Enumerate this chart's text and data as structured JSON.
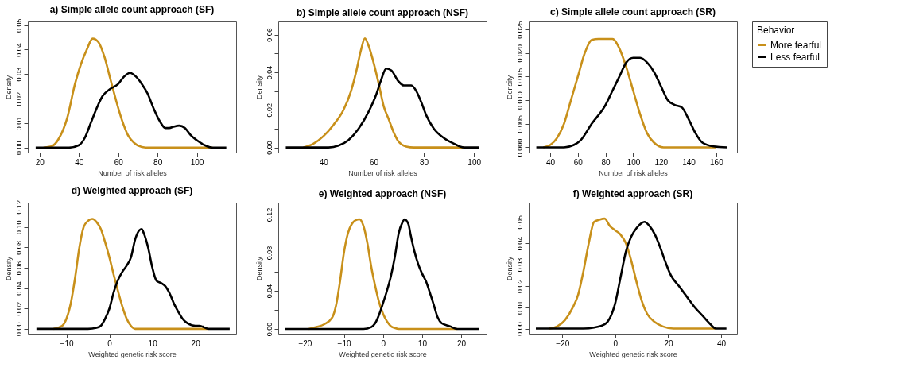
{
  "chart_data": [
    {
      "type": "line",
      "title": "a) Simple allele count approach (SF)",
      "xlabel": "Number of risk alleles",
      "ylabel": "Density",
      "xlim": [
        14,
        120
      ],
      "ylim": [
        -0.002,
        0.0515
      ],
      "xticks": [
        20,
        40,
        60,
        80,
        100
      ],
      "yticks": [
        {
          "value": 0,
          "label": "0.00"
        },
        {
          "value": 0.01,
          "label": "0.01"
        },
        {
          "value": 0.02,
          "label": "0.02"
        },
        {
          "value": 0.03,
          "label": "0.03"
        },
        {
          "value": 0.04,
          "label": "0.04"
        },
        {
          "value": 0.05,
          "label": "0.05"
        }
      ],
      "grid": false,
      "legend": "right",
      "legend_title": "Behavior",
      "series": [
        {
          "name": "More fearful",
          "color": "#c8901a",
          "x": [
            22,
            26,
            30,
            34,
            38,
            41,
            44,
            47,
            50,
            53,
            56,
            59,
            62,
            65,
            68,
            72,
            76,
            90,
            108
          ],
          "values": [
            0,
            0.0005,
            0.004,
            0.012,
            0.026,
            0.034,
            0.04,
            0.0445,
            0.043,
            0.037,
            0.028,
            0.019,
            0.011,
            0.005,
            0.002,
            0.0003,
            0,
            0,
            0
          ]
        },
        {
          "name": "Less fearful",
          "color": "#000000",
          "x": [
            18,
            35,
            40,
            43,
            46,
            49,
            52,
            56,
            60,
            63,
            66,
            69,
            72,
            75,
            78,
            81,
            84,
            86,
            88,
            91,
            94,
            97,
            100,
            104,
            108,
            115
          ],
          "values": [
            0,
            0,
            0.001,
            0.004,
            0.01,
            0.016,
            0.021,
            0.024,
            0.026,
            0.029,
            0.0305,
            0.029,
            0.026,
            0.022,
            0.016,
            0.011,
            0.008,
            0.008,
            0.0085,
            0.009,
            0.008,
            0.005,
            0.003,
            0.001,
            0,
            0
          ]
        }
      ]
    },
    {
      "type": "line",
      "title": "b) Simple allele count approach (NSF)",
      "xlabel": "Number of risk alleles",
      "ylabel": "Density",
      "xlim": [
        22,
        105
      ],
      "ylim": [
        -0.0027,
        0.067
      ],
      "xticks": [
        40,
        60,
        80,
        100
      ],
      "yticks": [
        {
          "value": 0,
          "label": "0.00"
        },
        {
          "value": 0.01,
          "label": null
        },
        {
          "value": 0.02,
          "label": "0.02"
        },
        {
          "value": 0.03,
          "label": null
        },
        {
          "value": 0.04,
          "label": "0.04"
        },
        {
          "value": 0.05,
          "label": null
        },
        {
          "value": 0.06,
          "label": "0.06"
        }
      ],
      "grid": false,
      "legend": "right",
      "series": [
        {
          "name": "More fearful",
          "color": "#c8901a",
          "x": [
            32,
            36,
            40,
            44,
            48,
            51,
            53,
            55,
            56.5,
            58,
            60,
            62,
            64,
            66,
            68,
            70,
            73,
            76,
            96
          ],
          "values": [
            0,
            0.002,
            0.006,
            0.012,
            0.02,
            0.03,
            0.04,
            0.052,
            0.058,
            0.054,
            0.045,
            0.034,
            0.022,
            0.015,
            0.008,
            0.003,
            0.0005,
            0,
            0
          ]
        },
        {
          "name": "Less fearful",
          "color": "#000000",
          "x": [
            25,
            42,
            46,
            50,
            54,
            58,
            61,
            63,
            65,
            67,
            70,
            72,
            75,
            77,
            79,
            81,
            84,
            88,
            92,
            96,
            102
          ],
          "values": [
            0,
            0,
            0.001,
            0.004,
            0.01,
            0.019,
            0.028,
            0.036,
            0.042,
            0.041,
            0.035,
            0.033,
            0.033,
            0.03,
            0.024,
            0.017,
            0.01,
            0.005,
            0.002,
            0,
            0
          ]
        }
      ]
    },
    {
      "type": "line",
      "title": "c) Simple allele count approach (SR)",
      "xlabel": "Number of risk alleles",
      "ylabel": "Density",
      "xlim": [
        24.5,
        175
      ],
      "ylim": [
        -0.0011,
        0.0267
      ],
      "xticks": [
        40,
        60,
        80,
        100,
        120,
        140,
        160
      ],
      "yticks": [
        {
          "value": 0,
          "label": "0.000"
        },
        {
          "value": 0.005,
          "label": "0.005"
        },
        {
          "value": 0.01,
          "label": "0.010"
        },
        {
          "value": 0.015,
          "label": "0.015"
        },
        {
          "value": 0.02,
          "label": "0.020"
        },
        {
          "value": 0.025,
          "label": "0.025"
        }
      ],
      "grid": false,
      "legend": "right",
      "series": [
        {
          "name": "More fearful",
          "color": "#c8901a",
          "x": [
            35,
            40,
            45,
            50,
            55,
            60,
            65,
            70,
            75,
            80,
            85,
            90,
            95,
            100,
            105,
            110,
            115,
            122,
            160
          ],
          "values": [
            0,
            0.0005,
            0.002,
            0.005,
            0.01,
            0.015,
            0.02,
            0.0228,
            0.023,
            0.023,
            0.023,
            0.021,
            0.017,
            0.012,
            0.007,
            0.003,
            0.001,
            0,
            0
          ]
        },
        {
          "name": "Less fearful",
          "color": "#000000",
          "x": [
            30,
            50,
            57,
            62,
            70,
            80,
            85,
            90,
            95,
            100,
            105,
            110,
            115,
            120,
            125,
            130,
            135,
            140,
            145,
            150,
            158,
            168
          ],
          "values": [
            0,
            0,
            0.0005,
            0.0015,
            0.005,
            0.009,
            0.012,
            0.015,
            0.018,
            0.019,
            0.019,
            0.018,
            0.016,
            0.013,
            0.01,
            0.009,
            0.0085,
            0.006,
            0.003,
            0.001,
            0.0002,
            0
          ]
        }
      ]
    },
    {
      "type": "line",
      "title": "d) Weighted approach (SF)",
      "xlabel": "Weighted genetic risk score",
      "ylabel": "Density",
      "xlim": [
        -19,
        29.5
      ],
      "ylim": [
        -0.0048,
        0.124
      ],
      "xticks": [
        -10,
        0,
        10,
        20
      ],
      "yticks": [
        {
          "value": 0,
          "label": "0.00"
        },
        {
          "value": 0.02,
          "label": "0.02"
        },
        {
          "value": 0.04,
          "label": "0.04"
        },
        {
          "value": 0.06,
          "label": "0.06"
        },
        {
          "value": 0.08,
          "label": "0.08"
        },
        {
          "value": 0.1,
          "label": "0.10"
        },
        {
          "value": 0.12,
          "label": "0.12"
        }
      ],
      "grid": false,
      "legend": "right",
      "series": [
        {
          "name": "More fearful",
          "color": "#c8901a",
          "x": [
            -13,
            -11,
            -10,
            -9,
            -8,
            -7,
            -6,
            -5,
            -4,
            -3,
            -2,
            -1,
            0,
            1,
            2,
            3,
            4,
            5,
            6,
            23
          ],
          "values": [
            0,
            0.003,
            0.01,
            0.025,
            0.05,
            0.08,
            0.1,
            0.106,
            0.108,
            0.105,
            0.098,
            0.085,
            0.07,
            0.053,
            0.037,
            0.022,
            0.01,
            0.003,
            0,
            0
          ]
        },
        {
          "name": "Less fearful",
          "color": "#000000",
          "x": [
            -17,
            -5,
            -3,
            -2,
            -1,
            0,
            1,
            2,
            3,
            4,
            5,
            6,
            7,
            7.5,
            8,
            9,
            10,
            11,
            12,
            13,
            14,
            15,
            16,
            17,
            18,
            20,
            21,
            23,
            28
          ],
          "values": [
            0,
            0,
            0.001,
            0.003,
            0.01,
            0.02,
            0.036,
            0.048,
            0.056,
            0.062,
            0.07,
            0.088,
            0.097,
            0.098,
            0.094,
            0.08,
            0.06,
            0.047,
            0.045,
            0.042,
            0.035,
            0.025,
            0.017,
            0.01,
            0.006,
            0.003,
            0.003,
            0,
            0
          ]
        }
      ]
    },
    {
      "type": "line",
      "title": "e) Weighted approach (NSF)",
      "xlabel": "Weighted genetic risk score",
      "ylabel": "Density",
      "xlim": [
        -26.8,
        26.5
      ],
      "ylim": [
        -0.005,
        0.1325
      ],
      "xticks": [
        -20,
        -10,
        0,
        10,
        20
      ],
      "yticks": [
        {
          "value": 0,
          "label": "0.00"
        },
        {
          "value": 0.02,
          "label": null
        },
        {
          "value": 0.04,
          "label": "0.04"
        },
        {
          "value": 0.06,
          "label": null
        },
        {
          "value": 0.08,
          "label": "0.08"
        },
        {
          "value": 0.1,
          "label": null
        },
        {
          "value": 0.12,
          "label": "0.12"
        }
      ],
      "grid": false,
      "legend": "right",
      "series": [
        {
          "name": "More fearful",
          "color": "#c8901a",
          "x": [
            -19,
            -17,
            -15,
            -13,
            -12,
            -11,
            -10,
            -9,
            -8,
            -7,
            -6,
            -5,
            -4,
            -3,
            -2,
            -1,
            0,
            1,
            2,
            3,
            4,
            19
          ],
          "values": [
            0,
            0.002,
            0.005,
            0.012,
            0.025,
            0.05,
            0.08,
            0.1,
            0.11,
            0.114,
            0.115,
            0.108,
            0.09,
            0.065,
            0.045,
            0.028,
            0.016,
            0.008,
            0.003,
            0.001,
            0,
            0
          ]
        },
        {
          "name": "Less fearful",
          "color": "#000000",
          "x": [
            -25,
            -5,
            -3,
            -2,
            -1,
            0,
            1,
            2,
            3,
            4,
            5,
            5.5,
            6.5,
            7,
            8,
            9,
            10,
            11,
            12,
            13,
            14,
            15,
            17,
            19,
            24.5
          ],
          "values": [
            0,
            0,
            0.002,
            0.006,
            0.015,
            0.027,
            0.04,
            0.055,
            0.075,
            0.1,
            0.112,
            0.115,
            0.11,
            0.1,
            0.082,
            0.068,
            0.058,
            0.05,
            0.038,
            0.025,
            0.012,
            0.006,
            0.003,
            0,
            0
          ]
        }
      ]
    },
    {
      "type": "line",
      "title": "f) Weighted approach (SR)",
      "xlabel": "Weighted genetic risk score",
      "ylabel": "Density",
      "xlim": [
        -32.7,
        46
      ],
      "ylim": [
        -0.0024,
        0.059
      ],
      "xticks": [
        -20,
        0,
        20,
        40
      ],
      "yticks": [
        {
          "value": 0,
          "label": "0.00"
        },
        {
          "value": 0.01,
          "label": "0.01"
        },
        {
          "value": 0.02,
          "label": "0.02"
        },
        {
          "value": 0.03,
          "label": "0.03"
        },
        {
          "value": 0.04,
          "label": "0.04"
        },
        {
          "value": 0.05,
          "label": "0.05"
        }
      ],
      "grid": false,
      "legend": "right",
      "series": [
        {
          "name": "More fearful",
          "color": "#c8901a",
          "x": [
            -25,
            -22,
            -19,
            -16,
            -14,
            -12,
            -10,
            -8,
            -6,
            -4,
            -2,
            0,
            2,
            4,
            6,
            8,
            10,
            12,
            15,
            18,
            22,
            38
          ],
          "values": [
            0,
            0.001,
            0.004,
            0.01,
            0.016,
            0.027,
            0.04,
            0.05,
            0.051,
            0.0515,
            0.048,
            0.046,
            0.044,
            0.04,
            0.032,
            0.022,
            0.013,
            0.007,
            0.003,
            0.001,
            0,
            0
          ]
        },
        {
          "name": "Less fearful",
          "color": "#000000",
          "x": [
            -30,
            -12,
            -8,
            -4,
            -2,
            0,
            2,
            4,
            6,
            8,
            10,
            11,
            13,
            15,
            17,
            19,
            21,
            24,
            27,
            30,
            33,
            36,
            38,
            42
          ],
          "values": [
            0,
            0,
            0.0005,
            0.002,
            0.005,
            0.012,
            0.024,
            0.036,
            0.043,
            0.047,
            0.0495,
            0.05,
            0.048,
            0.044,
            0.038,
            0.031,
            0.025,
            0.02,
            0.015,
            0.01,
            0.006,
            0.002,
            0,
            0
          ]
        }
      ]
    }
  ]
}
